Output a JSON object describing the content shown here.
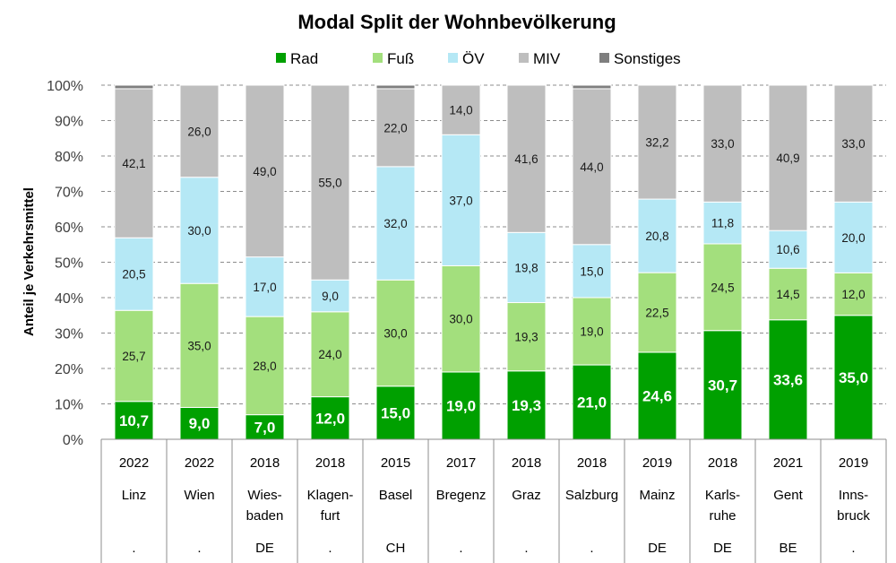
{
  "chart_data": {
    "type": "bar",
    "stacked": "percent",
    "title": "Modal Split der Wohnbevölkerung",
    "xlabel": "",
    "ylabel": "Anteil je Verkehrsmittel",
    "ylim": [
      0,
      100
    ],
    "yticks": [
      "0%",
      "10%",
      "20%",
      "30%",
      "40%",
      "50%",
      "60%",
      "70%",
      "80%",
      "90%",
      "100%"
    ],
    "grid": true,
    "legend_position": "top-center",
    "categories": [
      {
        "year": "2022",
        "city": [
          "Linz"
        ],
        "country": "."
      },
      {
        "year": "2022",
        "city": [
          "Wien"
        ],
        "country": "."
      },
      {
        "year": "2018",
        "city": [
          "Wies-",
          "baden"
        ],
        "country": "DE"
      },
      {
        "year": "2018",
        "city": [
          "Klagen-",
          "furt"
        ],
        "country": "."
      },
      {
        "year": "2015",
        "city": [
          "Basel"
        ],
        "country": "CH"
      },
      {
        "year": "2017",
        "city": [
          "Bregenz"
        ],
        "country": "."
      },
      {
        "year": "2018",
        "city": [
          "Graz"
        ],
        "country": "."
      },
      {
        "year": "2018",
        "city": [
          "Salzburg"
        ],
        "country": "."
      },
      {
        "year": "2019",
        "city": [
          "Mainz"
        ],
        "country": "DE"
      },
      {
        "year": "2018",
        "city": [
          "Karls-",
          "ruhe"
        ],
        "country": "DE"
      },
      {
        "year": "2021",
        "city": [
          "Gent"
        ],
        "country": "BE"
      },
      {
        "year": "2019",
        "city": [
          "Inns-",
          "bruck"
        ],
        "country": "."
      }
    ],
    "series": [
      {
        "name": "Rad",
        "color": "#00a000",
        "values": [
          10.7,
          9.0,
          7.0,
          12.0,
          15.0,
          19.0,
          19.3,
          21.0,
          24.6,
          30.7,
          33.6,
          35.0
        ],
        "labels": [
          "10,7",
          "9,0",
          "7,0",
          "12,0",
          "15,0",
          "19,0",
          "19,3",
          "21,0",
          "24,6",
          "30,7",
          "33,6",
          "35,0"
        ]
      },
      {
        "name": "Fuß",
        "color": "#a3df7d",
        "values": [
          25.7,
          35.0,
          28.0,
          24.0,
          30.0,
          30.0,
          19.3,
          19.0,
          22.5,
          24.5,
          14.5,
          12.0
        ],
        "labels": [
          "25,7",
          "35,0",
          "28,0",
          "24,0",
          "30,0",
          "30,0",
          "19,3",
          "19,0",
          "22,5",
          "24,5",
          "14,5",
          "12,0"
        ]
      },
      {
        "name": "ÖV",
        "color": "#b5e8f5",
        "values": [
          20.5,
          30.0,
          17.0,
          9.0,
          32.0,
          37.0,
          19.8,
          15.0,
          20.8,
          11.8,
          10.6,
          20.0
        ],
        "labels": [
          "20,5",
          "30,0",
          "17,0",
          "9,0",
          "32,0",
          "37,0",
          "19,8",
          "15,0",
          "20,8",
          "11,8",
          "10,6",
          "20,0"
        ]
      },
      {
        "name": "MIV",
        "color": "#bebebe",
        "values": [
          42.1,
          26.0,
          49.0,
          55.0,
          22.0,
          14.0,
          41.6,
          44.0,
          32.2,
          33.0,
          40.9,
          33.0
        ],
        "labels": [
          "42,1",
          "26,0",
          "49,0",
          "55,0",
          "22,0",
          "14,0",
          "41,6",
          "44,0",
          "32,2",
          "33,0",
          "40,9",
          "33,0"
        ]
      },
      {
        "name": "Sonstiges",
        "color": "#7f7f7f",
        "values": [
          1.0,
          0,
          0,
          0,
          1.0,
          0,
          0,
          1.0,
          0,
          0,
          0,
          0
        ],
        "labels": [
          "",
          "",
          "",
          "",
          "",
          "",
          "",
          "",
          "",
          "",
          "",
          ""
        ]
      }
    ]
  }
}
